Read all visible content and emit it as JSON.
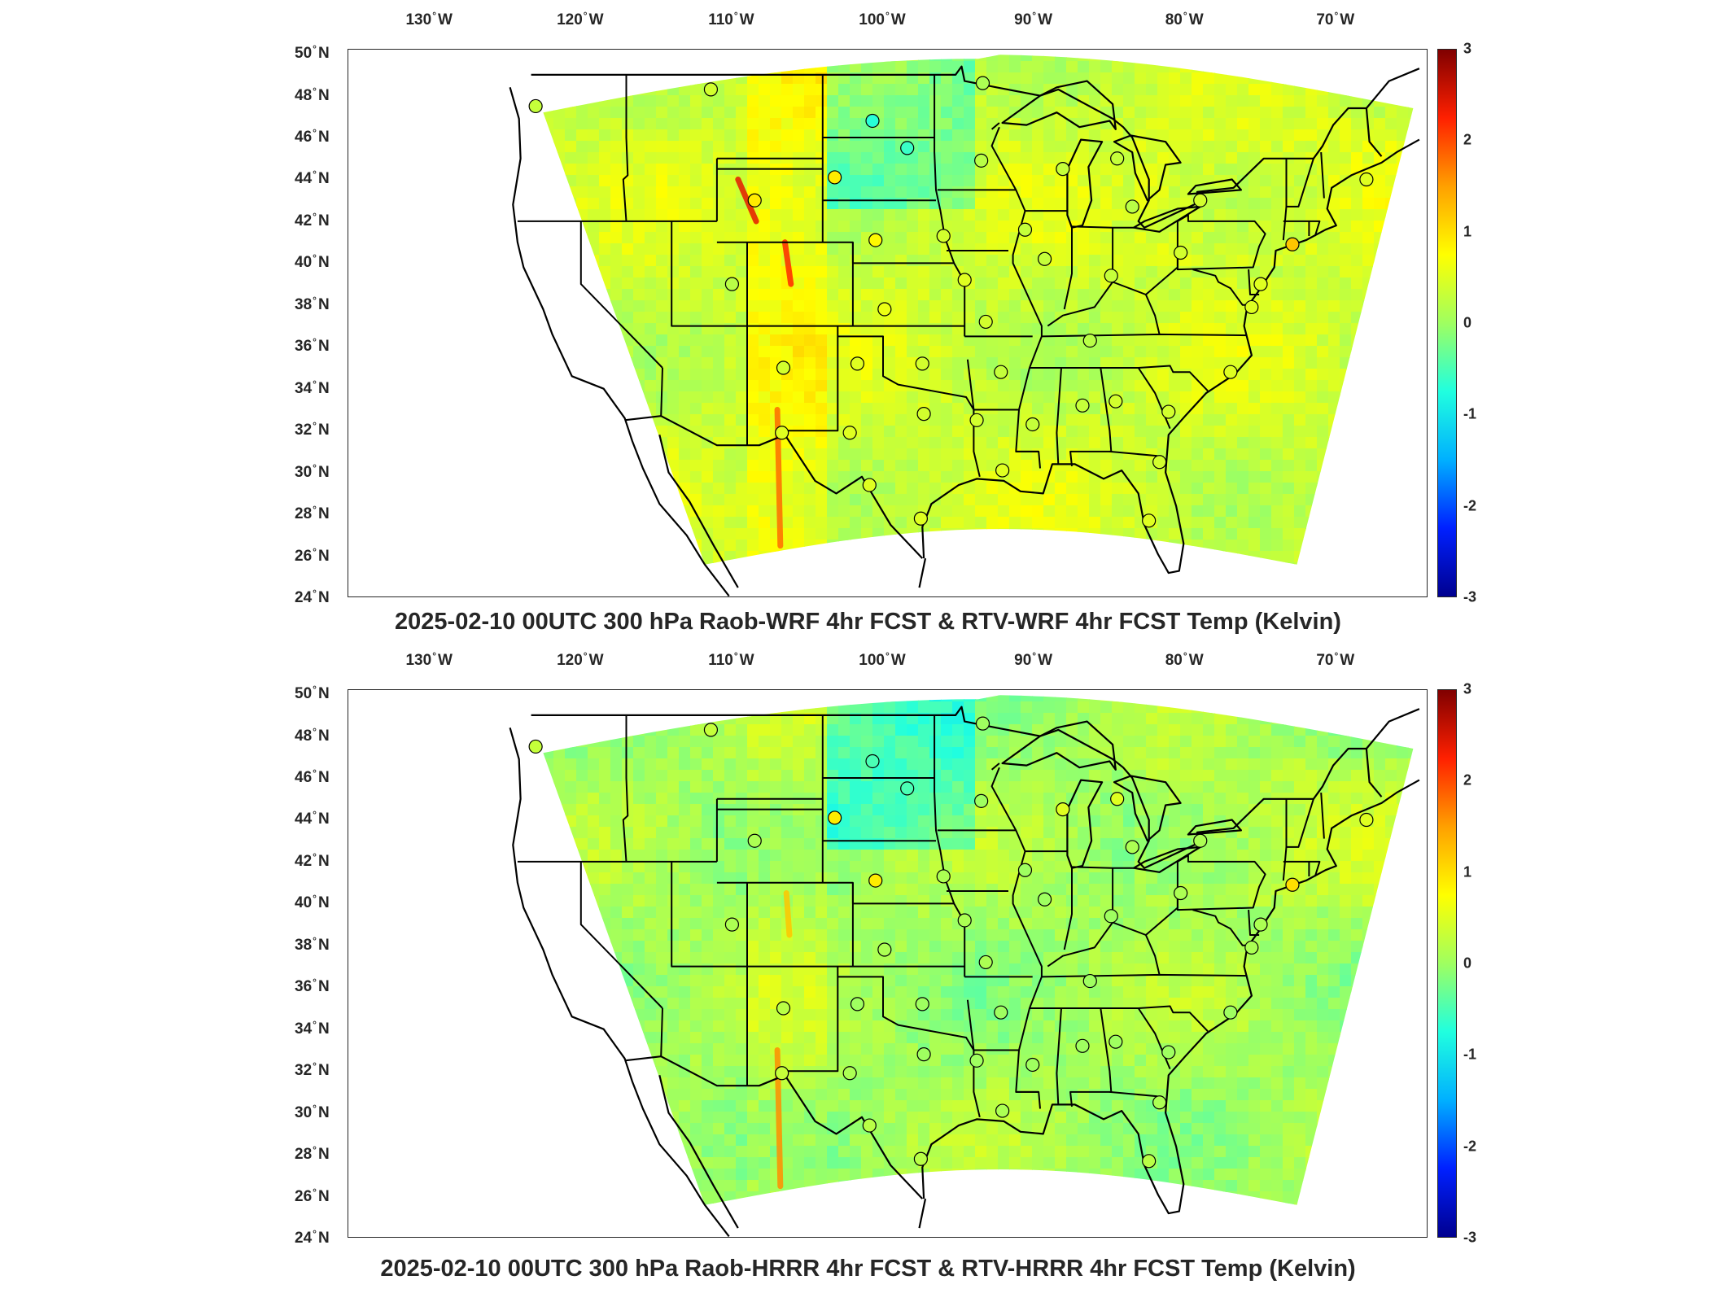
{
  "colors": {
    "frame": "#262626",
    "coast": "#000000",
    "colormap": [
      "#00008f",
      "#0020ff",
      "#00b0ff",
      "#20ffdf",
      "#9fff60",
      "#ffff00",
      "#ffa000",
      "#ff2000",
      "#800000"
    ]
  },
  "colorbar": {
    "min": -3,
    "max": 3,
    "ticks": [
      "3",
      "2",
      "1",
      "0",
      "-1",
      "-2",
      "-3"
    ]
  },
  "lon_labels": [
    {
      "deg": "130",
      "hem": "W"
    },
    {
      "deg": "120",
      "hem": "W"
    },
    {
      "deg": "110",
      "hem": "W"
    },
    {
      "deg": "100",
      "hem": "W"
    },
    {
      "deg": "90",
      "hem": "W"
    },
    {
      "deg": "80",
      "hem": "W"
    },
    {
      "deg": "70",
      "hem": "W"
    }
  ],
  "lat_labels": [
    {
      "deg": "50",
      "hem": "N"
    },
    {
      "deg": "48",
      "hem": "N"
    },
    {
      "deg": "46",
      "hem": "N"
    },
    {
      "deg": "44",
      "hem": "N"
    },
    {
      "deg": "42",
      "hem": "N"
    },
    {
      "deg": "40",
      "hem": "N"
    },
    {
      "deg": "38",
      "hem": "N"
    },
    {
      "deg": "36",
      "hem": "N"
    },
    {
      "deg": "34",
      "hem": "N"
    },
    {
      "deg": "32",
      "hem": "N"
    },
    {
      "deg": "30",
      "hem": "N"
    },
    {
      "deg": "28",
      "hem": "N"
    },
    {
      "deg": "26",
      "hem": "N"
    },
    {
      "deg": "24",
      "hem": "N"
    }
  ],
  "panels": [
    {
      "title": "2025-02-10 00UTC 300 hPa Raob-WRF 4hr FCST & RTV-WRF 4hr FCST Temp (Kelvin)",
      "field_bias": 0.35,
      "stations": [
        {
          "lon": -123.0,
          "lat": 47.5,
          "value": 0.3
        },
        {
          "lon": -111.4,
          "lat": 48.3,
          "value": 0.4
        },
        {
          "lon": -100.7,
          "lat": 46.8,
          "value": -0.7
        },
        {
          "lon": -98.4,
          "lat": 45.5,
          "value": -0.6
        },
        {
          "lon": -93.4,
          "lat": 48.6,
          "value": 0.1
        },
        {
          "lon": -93.5,
          "lat": 44.9,
          "value": 0.2
        },
        {
          "lon": -88.1,
          "lat": 44.5,
          "value": 0.3
        },
        {
          "lon": -84.5,
          "lat": 45.0,
          "value": 0.3
        },
        {
          "lon": -83.5,
          "lat": 42.7,
          "value": 0.2
        },
        {
          "lon": -79.0,
          "lat": 43.0,
          "value": 0.4
        },
        {
          "lon": -68.0,
          "lat": 44.0,
          "value": 0.5
        },
        {
          "lon": -108.5,
          "lat": 43.0,
          "value": 0.9
        },
        {
          "lon": -103.2,
          "lat": 44.1,
          "value": 0.9
        },
        {
          "lon": -100.5,
          "lat": 41.1,
          "value": 0.8
        },
        {
          "lon": -96.0,
          "lat": 41.3,
          "value": 0.4
        },
        {
          "lon": -90.6,
          "lat": 41.6,
          "value": 0.3
        },
        {
          "lon": -110.0,
          "lat": 39.0,
          "value": 0.2
        },
        {
          "lon": -94.6,
          "lat": 39.2,
          "value": 0.5
        },
        {
          "lon": -89.3,
          "lat": 40.2,
          "value": 0.3
        },
        {
          "lon": -84.9,
          "lat": 39.4,
          "value": 0.3
        },
        {
          "lon": -80.3,
          "lat": 40.5,
          "value": 0.4
        },
        {
          "lon": -75.0,
          "lat": 39.0,
          "value": 0.5
        },
        {
          "lon": -72.9,
          "lat": 40.9,
          "value": 1.2
        },
        {
          "lon": -99.9,
          "lat": 37.8,
          "value": 0.6
        },
        {
          "lon": -93.2,
          "lat": 37.2,
          "value": 0.4
        },
        {
          "lon": -86.3,
          "lat": 36.3,
          "value": 0.2
        },
        {
          "lon": -75.6,
          "lat": 37.9,
          "value": 0.5
        },
        {
          "lon": -106.6,
          "lat": 35.0,
          "value": 0.4
        },
        {
          "lon": -101.7,
          "lat": 35.2,
          "value": 0.5
        },
        {
          "lon": -97.4,
          "lat": 35.2,
          "value": 0.4
        },
        {
          "lon": -92.2,
          "lat": 34.8,
          "value": 0.3
        },
        {
          "lon": -77.0,
          "lat": 34.8,
          "value": 0.5
        },
        {
          "lon": -106.7,
          "lat": 31.9,
          "value": 0.5
        },
        {
          "lon": -102.2,
          "lat": 31.9,
          "value": 0.5
        },
        {
          "lon": -97.3,
          "lat": 32.8,
          "value": 0.4
        },
        {
          "lon": -93.8,
          "lat": 32.5,
          "value": 0.4
        },
        {
          "lon": -90.1,
          "lat": 32.3,
          "value": 0.3
        },
        {
          "lon": -86.8,
          "lat": 33.2,
          "value": 0.3
        },
        {
          "lon": -84.6,
          "lat": 33.4,
          "value": 0.4
        },
        {
          "lon": -81.1,
          "lat": 32.9,
          "value": 0.4
        },
        {
          "lon": -100.9,
          "lat": 29.4,
          "value": 0.5
        },
        {
          "lon": -97.5,
          "lat": 27.8,
          "value": 0.5
        },
        {
          "lon": -92.1,
          "lat": 30.1,
          "value": 0.5
        },
        {
          "lon": -81.7,
          "lat": 30.5,
          "value": 0.4
        },
        {
          "lon": -82.4,
          "lat": 27.7,
          "value": 0.5
        }
      ]
    },
    {
      "title": "2025-02-10 00UTC 300 hPa Raob-HRRR 4hr FCST & RTV-HRRR 4hr FCST Temp (Kelvin)",
      "field_bias": 0.05,
      "stations": [
        {
          "lon": -123.0,
          "lat": 47.5,
          "value": 0.3
        },
        {
          "lon": -111.4,
          "lat": 48.3,
          "value": 0.3
        },
        {
          "lon": -100.7,
          "lat": 46.8,
          "value": -0.5
        },
        {
          "lon": -98.4,
          "lat": 45.5,
          "value": -0.5
        },
        {
          "lon": -93.4,
          "lat": 48.6,
          "value": 0.0
        },
        {
          "lon": -93.5,
          "lat": 44.9,
          "value": 0.0
        },
        {
          "lon": -88.1,
          "lat": 44.5,
          "value": 0.5
        },
        {
          "lon": -84.5,
          "lat": 45.0,
          "value": 0.5
        },
        {
          "lon": -83.5,
          "lat": 42.7,
          "value": 0.1
        },
        {
          "lon": -79.0,
          "lat": 43.0,
          "value": 0.1
        },
        {
          "lon": -68.0,
          "lat": 44.0,
          "value": 0.5
        },
        {
          "lon": -108.5,
          "lat": 43.0,
          "value": 0.1
        },
        {
          "lon": -103.2,
          "lat": 44.1,
          "value": 0.9
        },
        {
          "lon": -100.5,
          "lat": 41.1,
          "value": 0.9
        },
        {
          "lon": -96.0,
          "lat": 41.3,
          "value": 0.1
        },
        {
          "lon": -90.6,
          "lat": 41.6,
          "value": 0.0
        },
        {
          "lon": -110.0,
          "lat": 39.0,
          "value": 0.1
        },
        {
          "lon": -94.6,
          "lat": 39.2,
          "value": 0.1
        },
        {
          "lon": -89.3,
          "lat": 40.2,
          "value": 0.0
        },
        {
          "lon": -84.9,
          "lat": 39.4,
          "value": 0.0
        },
        {
          "lon": -80.3,
          "lat": 40.5,
          "value": 0.1
        },
        {
          "lon": -75.0,
          "lat": 39.0,
          "value": 0.1
        },
        {
          "lon": -72.9,
          "lat": 40.9,
          "value": 1.0
        },
        {
          "lon": -99.9,
          "lat": 37.8,
          "value": 0.1
        },
        {
          "lon": -93.2,
          "lat": 37.2,
          "value": 0.1
        },
        {
          "lon": -86.3,
          "lat": 36.3,
          "value": 0.0
        },
        {
          "lon": -75.6,
          "lat": 37.9,
          "value": 0.1
        },
        {
          "lon": -106.6,
          "lat": 35.0,
          "value": 0.2
        },
        {
          "lon": -101.7,
          "lat": 35.2,
          "value": 0.0
        },
        {
          "lon": -97.4,
          "lat": 35.2,
          "value": 0.0
        },
        {
          "lon": -92.2,
          "lat": 34.8,
          "value": 0.0
        },
        {
          "lon": -77.0,
          "lat": 34.8,
          "value": 0.0
        },
        {
          "lon": -106.7,
          "lat": 31.9,
          "value": 0.3
        },
        {
          "lon": -102.2,
          "lat": 31.9,
          "value": 0.1
        },
        {
          "lon": -97.3,
          "lat": 32.8,
          "value": 0.0
        },
        {
          "lon": -93.8,
          "lat": 32.5,
          "value": 0.0
        },
        {
          "lon": -90.1,
          "lat": 32.3,
          "value": 0.0
        },
        {
          "lon": -86.8,
          "lat": 33.2,
          "value": 0.0
        },
        {
          "lon": -84.6,
          "lat": 33.4,
          "value": 0.0
        },
        {
          "lon": -81.1,
          "lat": 32.9,
          "value": 0.0
        },
        {
          "lon": -100.9,
          "lat": 29.4,
          "value": 0.2
        },
        {
          "lon": -97.5,
          "lat": 27.8,
          "value": 0.2
        },
        {
          "lon": -92.1,
          "lat": 30.1,
          "value": 0.1
        },
        {
          "lon": -81.7,
          "lat": 30.5,
          "value": 0.1
        },
        {
          "lon": -82.4,
          "lat": 27.7,
          "value": 0.2
        }
      ]
    }
  ]
}
